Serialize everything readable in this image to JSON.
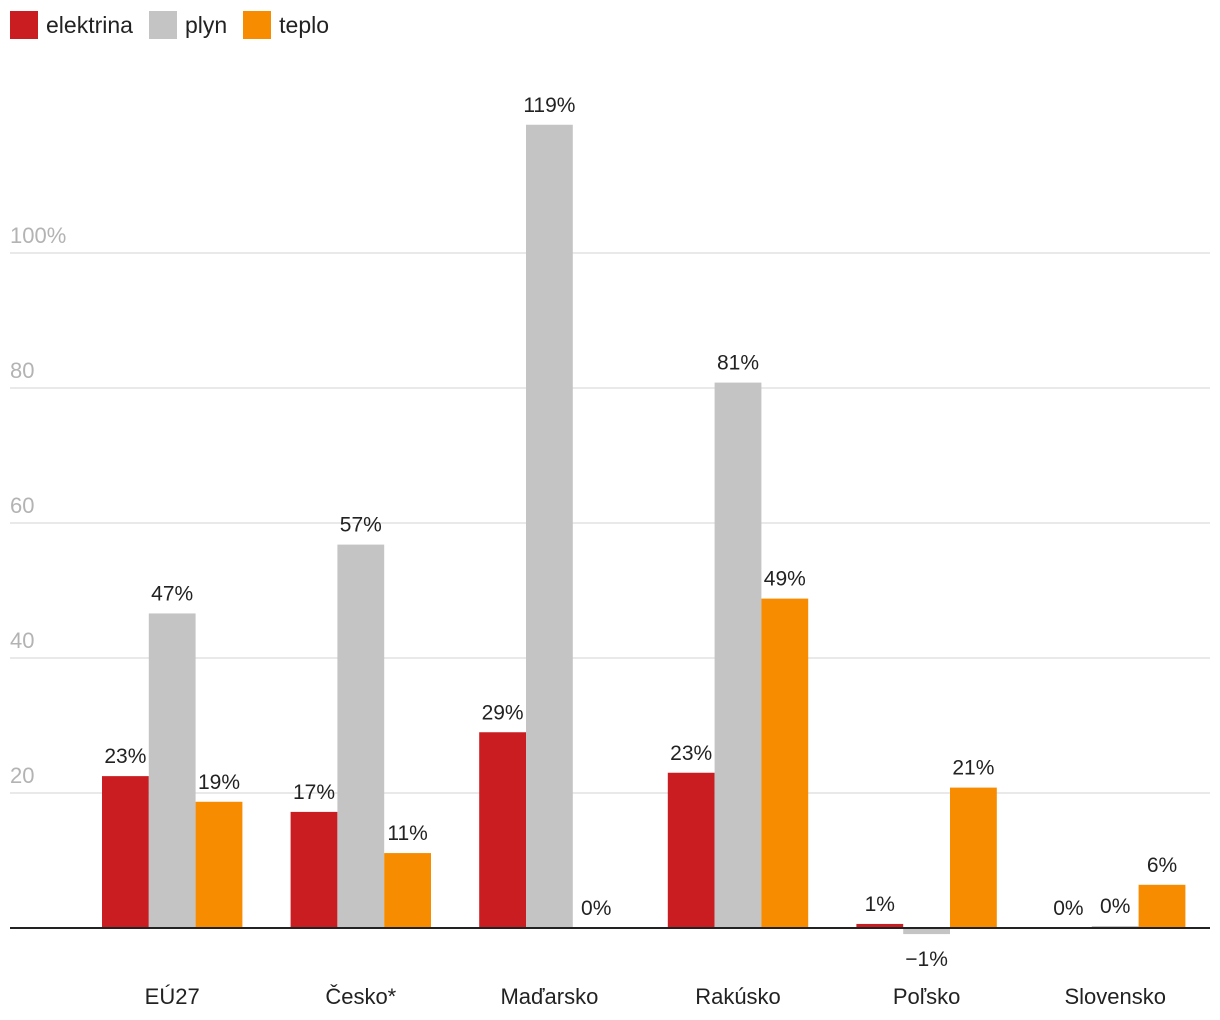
{
  "chart_data": {
    "type": "bar",
    "categories": [
      "EÚ27",
      "Česko*",
      "Maďarsko",
      "Rakúsko",
      "Poľsko",
      "Slovensko"
    ],
    "series": [
      {
        "name": "elektrina",
        "color": "#c91d21",
        "values": [
          22.5,
          17.2,
          29.0,
          23.0,
          0.6,
          0.0
        ],
        "labels": [
          "23%",
          "17%",
          "29%",
          "23%",
          "1%",
          "0%"
        ]
      },
      {
        "name": "plyn",
        "color": "#c4c4c4",
        "values": [
          46.6,
          56.8,
          119.0,
          80.8,
          -0.9,
          0.3
        ],
        "labels": [
          "47%",
          "57%",
          "119%",
          "81%",
          "−1%",
          "0%"
        ]
      },
      {
        "name": "teplo",
        "color": "#f78c00",
        "values": [
          18.7,
          11.1,
          0.0,
          48.8,
          20.8,
          6.4
        ],
        "labels": [
          "19%",
          "11%",
          "0%",
          "49%",
          "21%",
          "6%"
        ]
      }
    ],
    "y_ticks": [
      {
        "value": 20,
        "label": "20"
      },
      {
        "value": 40,
        "label": "40"
      },
      {
        "value": 60,
        "label": "60"
      },
      {
        "value": 80,
        "label": "80"
      },
      {
        "value": 100,
        "label": "100%"
      }
    ],
    "ylim": [
      -2,
      122
    ],
    "grid": true,
    "legend": "top-left"
  }
}
